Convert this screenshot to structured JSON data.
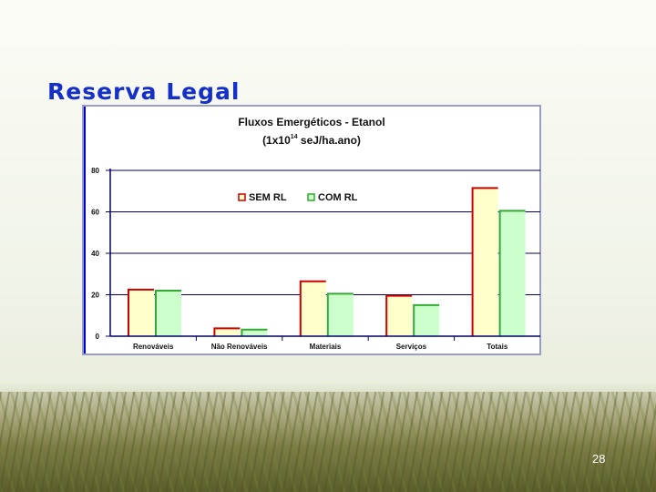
{
  "slide": {
    "title": "Reserva Legal",
    "page_number": "28"
  },
  "chart_data": {
    "type": "bar",
    "title_line1": "Fluxos Emergéticos - Etanol",
    "title_line2_prefix": "(1x10",
    "title_line2_exponent": "14",
    "title_line2_suffix": " seJ/ha.ano)",
    "categories": [
      "Renováveis",
      "Não Renováveis",
      "Materiais",
      "Serviços",
      "Totais"
    ],
    "series": [
      {
        "name": "SEM RL",
        "values": [
          22.5,
          3.8,
          26.5,
          19.5,
          71.5
        ],
        "fill": "#ffffcc",
        "stroke": "#cc0000"
      },
      {
        "name": "COM RL",
        "values": [
          22,
          3.2,
          20.5,
          15,
          60.5
        ],
        "fill": "#ccffcc",
        "stroke": "#33aa33"
      }
    ],
    "ylim": [
      0,
      80
    ],
    "yticks": [
      "0",
      "20",
      "40",
      "60",
      "80"
    ],
    "grid": true,
    "legend_position": "top-left"
  }
}
